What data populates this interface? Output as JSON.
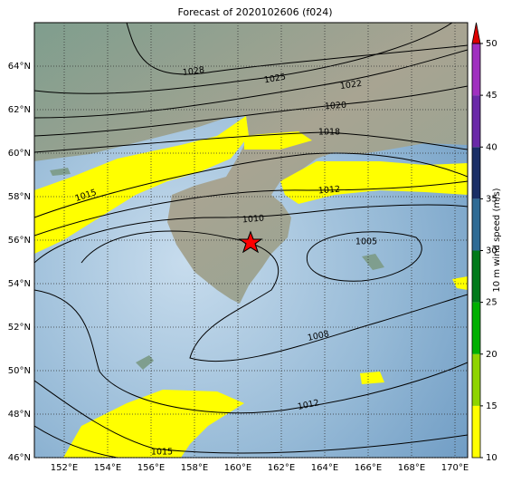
{
  "title": "Forecast of 2020102606 (f024)",
  "map": {
    "xlim": [
      150.625,
      170.583
    ],
    "ylim": [
      46,
      66
    ],
    "xticks": [
      {
        "value": 152,
        "label": "152°E"
      },
      {
        "value": 154,
        "label": "154°E"
      },
      {
        "value": 156,
        "label": "156°E"
      },
      {
        "value": 158,
        "label": "158°E"
      },
      {
        "value": 160,
        "label": "160°E"
      },
      {
        "value": 162,
        "label": "162°E"
      },
      {
        "value": 164,
        "label": "164°E"
      },
      {
        "value": 166,
        "label": "166°E"
      },
      {
        "value": 168,
        "label": "168°E"
      },
      {
        "value": 170,
        "label": "170°E"
      }
    ],
    "yticks": [
      {
        "value": 46,
        "label": "46°N"
      },
      {
        "value": 48,
        "label": "48°N"
      },
      {
        "value": 50,
        "label": "50°N"
      },
      {
        "value": 52,
        "label": "52°N"
      },
      {
        "value": 54,
        "label": "54°N"
      },
      {
        "value": 56,
        "label": "56°N"
      },
      {
        "value": 58,
        "label": "58°N"
      },
      {
        "value": 60,
        "label": "60°N"
      },
      {
        "value": 62,
        "label": "62°N"
      },
      {
        "value": 64,
        "label": "64°N"
      }
    ],
    "isobar_labels": [
      "1028",
      "1025",
      "1022",
      "1020",
      "1018",
      "1015",
      "1012",
      "1010",
      "1005",
      "1008",
      "1012",
      "1015"
    ]
  },
  "colorbar": {
    "label": "10 m wind speed (m/s)",
    "ticks": [
      10,
      15,
      20,
      25,
      30,
      35,
      40,
      45,
      50
    ],
    "colors": [
      "#ffff00",
      "#8fd400",
      "#00b000",
      "#007a1a",
      "#2e6b95",
      "#1a2e66",
      "#6a2aa8",
      "#a030c0"
    ],
    "extend_color": "#dd0000"
  }
}
